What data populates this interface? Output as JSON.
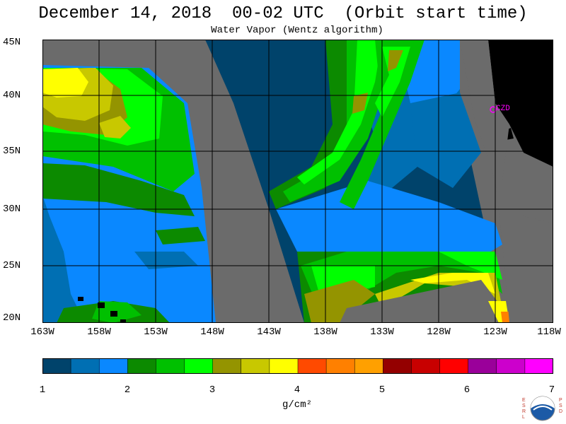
{
  "title": "December 14, 2018  00-02 UTC  (Orbit start time)",
  "subtitle": "Water Vapor (Wentz algorithm)",
  "lat_labels": [
    "45N",
    "40N",
    "35N",
    "30N",
    "25N",
    "20N"
  ],
  "lon_labels": [
    "163W",
    "158W",
    "153W",
    "148W",
    "143W",
    "138W",
    "133W",
    "128W",
    "123W",
    "118W"
  ],
  "station_label": "CZD",
  "colorbar": {
    "ticks": [
      "1",
      "2",
      "3",
      "4",
      "5",
      "6",
      "7"
    ],
    "units": "g/cm²",
    "colors": [
      "#00436b",
      "#006fb3",
      "#0a88ff",
      "#0c8a00",
      "#00c000",
      "#00ff00",
      "#949400",
      "#c8c800",
      "#ffff00",
      "#ff4a00",
      "#ff8000",
      "#ffa000",
      "#940000",
      "#c80000",
      "#ff0000",
      "#9a009a",
      "#cc00cc",
      "#ff00ff"
    ]
  },
  "colors": {
    "no_data": "#6b6b6b",
    "land": "#000000",
    "grid": "#000000",
    "station": "#ff00ff"
  },
  "logo": {
    "left_letters": "ESRL",
    "right_letters": "PSD",
    "name": "noaa-logo"
  }
}
